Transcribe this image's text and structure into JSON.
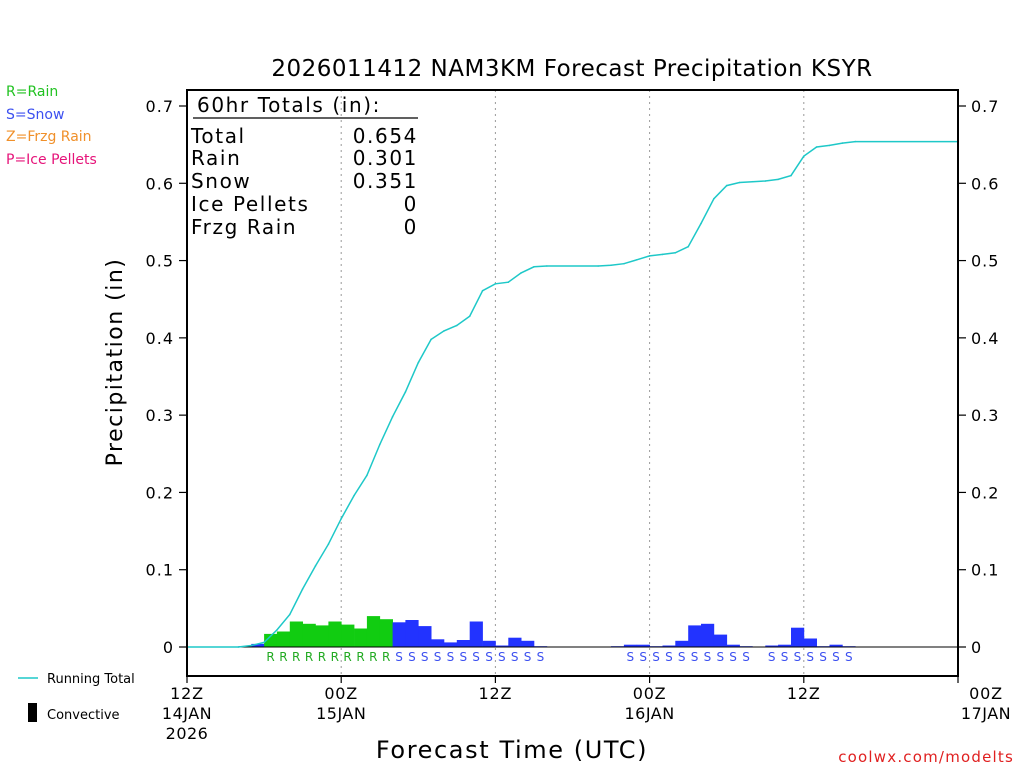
{
  "chart_data": {
    "type": "bar",
    "title": "2026011412 NAM3KM Forecast Precipitation KSYR",
    "xlabel": "Forecast Time (UTC)",
    "ylabel": "Precipitation (in)",
    "ylim": [
      0,
      0.7
    ],
    "xlim_hours": [
      0,
      60
    ],
    "yticks": [
      "0",
      "0.1",
      "0.2",
      "0.3",
      "0.4",
      "0.5",
      "0.6",
      "0.7"
    ],
    "xticks": [
      {
        "hour": 0,
        "top": "12Z",
        "mid": "14JAN",
        "bot": "2026"
      },
      {
        "hour": 12,
        "top": "00Z",
        "mid": "15JAN",
        "bot": ""
      },
      {
        "hour": 24,
        "top": "12Z",
        "mid": "",
        "bot": ""
      },
      {
        "hour": 36,
        "top": "00Z",
        "mid": "16JAN",
        "bot": ""
      },
      {
        "hour": 48,
        "top": "12Z",
        "mid": "",
        "bot": ""
      },
      {
        "hour": 60,
        "top": "00Z",
        "mid": "17JAN",
        "bot": ""
      }
    ],
    "legend_top": [
      {
        "label": "R=Rain",
        "color": "#22c222"
      },
      {
        "label": "S=Snow",
        "color": "#3c50f0"
      },
      {
        "label": "Z=Frzg Rain",
        "color": "#f0902a"
      },
      {
        "label": "P=Ice Pellets",
        "color": "#e6147a"
      }
    ],
    "legend_bottom": [
      {
        "label": "Running Total",
        "kind": "line",
        "color": "#1ec8c8"
      },
      {
        "label": "Convective",
        "kind": "bar",
        "color": "#000000"
      }
    ],
    "totals": {
      "header": "60hr Totals (in):",
      "rows": [
        {
          "label": "Total",
          "value": "0.654"
        },
        {
          "label": "Rain",
          "value": "0.301"
        },
        {
          "label": "Snow",
          "value": "0.351"
        },
        {
          "label": "Ice Pellets",
          "value": "0"
        },
        {
          "label": "Frzg Rain",
          "value": "0"
        }
      ]
    },
    "colors": {
      "rain": "#11cc11",
      "snow": "#2233ff",
      "running_total": "#1ec8c8",
      "marker_rain": "#22aa22",
      "marker_snow": "#3c50f0"
    },
    "hourly": [
      {
        "h": 1,
        "v": 0.0,
        "type": ""
      },
      {
        "h": 2,
        "v": 0.0,
        "type": ""
      },
      {
        "h": 3,
        "v": 0.0,
        "type": ""
      },
      {
        "h": 4,
        "v": 0.0,
        "type": ""
      },
      {
        "h": 5,
        "v": 0.001,
        "type": ""
      },
      {
        "h": 6,
        "v": 0.004,
        "type": ""
      },
      {
        "h": 7,
        "v": 0.017,
        "type": "R"
      },
      {
        "h": 8,
        "v": 0.02,
        "type": "R"
      },
      {
        "h": 9,
        "v": 0.033,
        "type": "R"
      },
      {
        "h": 10,
        "v": 0.03,
        "type": "R"
      },
      {
        "h": 11,
        "v": 0.028,
        "type": "R"
      },
      {
        "h": 12,
        "v": 0.033,
        "type": "R"
      },
      {
        "h": 13,
        "v": 0.029,
        "type": "R"
      },
      {
        "h": 14,
        "v": 0.024,
        "type": "R"
      },
      {
        "h": 15,
        "v": 0.04,
        "type": "R"
      },
      {
        "h": 16,
        "v": 0.036,
        "type": "R"
      },
      {
        "h": 17,
        "v": 0.032,
        "type": "S"
      },
      {
        "h": 18,
        "v": 0.035,
        "type": "S"
      },
      {
        "h": 19,
        "v": 0.027,
        "type": "S"
      },
      {
        "h": 20,
        "v": 0.01,
        "type": "S"
      },
      {
        "h": 21,
        "v": 0.006,
        "type": "S"
      },
      {
        "h": 22,
        "v": 0.009,
        "type": "S"
      },
      {
        "h": 23,
        "v": 0.033,
        "type": "S"
      },
      {
        "h": 24,
        "v": 0.008,
        "type": "S"
      },
      {
        "h": 25,
        "v": 0.002,
        "type": "S"
      },
      {
        "h": 26,
        "v": 0.012,
        "type": "S"
      },
      {
        "h": 27,
        "v": 0.008,
        "type": "S"
      },
      {
        "h": 28,
        "v": 0.001,
        "type": "S"
      },
      {
        "h": 29,
        "v": 0.0,
        "type": ""
      },
      {
        "h": 30,
        "v": 0.0,
        "type": ""
      },
      {
        "h": 31,
        "v": 0.0,
        "type": ""
      },
      {
        "h": 32,
        "v": 0.0,
        "type": ""
      },
      {
        "h": 33,
        "v": 0.0,
        "type": ""
      },
      {
        "h": 34,
        "v": 0.001,
        "type": ""
      },
      {
        "h": 35,
        "v": 0.003,
        "type": "S"
      },
      {
        "h": 36,
        "v": 0.003,
        "type": "S"
      },
      {
        "h": 37,
        "v": 0.001,
        "type": "S"
      },
      {
        "h": 38,
        "v": 0.002,
        "type": "S"
      },
      {
        "h": 39,
        "v": 0.008,
        "type": "S"
      },
      {
        "h": 40,
        "v": 0.028,
        "type": "S"
      },
      {
        "h": 41,
        "v": 0.03,
        "type": "S"
      },
      {
        "h": 42,
        "v": 0.016,
        "type": "S"
      },
      {
        "h": 43,
        "v": 0.003,
        "type": "S"
      },
      {
        "h": 44,
        "v": 0.001,
        "type": "S"
      },
      {
        "h": 45,
        "v": 0.0,
        "type": ""
      },
      {
        "h": 46,
        "v": 0.002,
        "type": "S"
      },
      {
        "h": 47,
        "v": 0.003,
        "type": "S"
      },
      {
        "h": 48,
        "v": 0.025,
        "type": "S"
      },
      {
        "h": 49,
        "v": 0.011,
        "type": "S"
      },
      {
        "h": 50,
        "v": 0.001,
        "type": "S"
      },
      {
        "h": 51,
        "v": 0.003,
        "type": "S"
      },
      {
        "h": 52,
        "v": 0.001,
        "type": "S"
      },
      {
        "h": 53,
        "v": 0.0,
        "type": ""
      },
      {
        "h": 54,
        "v": 0.0,
        "type": ""
      },
      {
        "h": 55,
        "v": 0.0,
        "type": ""
      },
      {
        "h": 56,
        "v": 0.0,
        "type": ""
      },
      {
        "h": 57,
        "v": 0.0,
        "type": ""
      },
      {
        "h": 58,
        "v": 0.0,
        "type": ""
      },
      {
        "h": 59,
        "v": 0.0,
        "type": ""
      },
      {
        "h": 60,
        "v": 0.0,
        "type": ""
      }
    ],
    "running_total": [
      {
        "h": 0,
        "v": 0.0
      },
      {
        "h": 4,
        "v": 0.0
      },
      {
        "h": 5,
        "v": 0.002
      },
      {
        "h": 6,
        "v": 0.006
      },
      {
        "h": 7,
        "v": 0.022
      },
      {
        "h": 8,
        "v": 0.042
      },
      {
        "h": 9,
        "v": 0.075
      },
      {
        "h": 10,
        "v": 0.105
      },
      {
        "h": 11,
        "v": 0.133
      },
      {
        "h": 12,
        "v": 0.166
      },
      {
        "h": 13,
        "v": 0.196
      },
      {
        "h": 14,
        "v": 0.222
      },
      {
        "h": 15,
        "v": 0.262
      },
      {
        "h": 16,
        "v": 0.298
      },
      {
        "h": 17,
        "v": 0.33
      },
      {
        "h": 18,
        "v": 0.368
      },
      {
        "h": 19,
        "v": 0.398
      },
      {
        "h": 20,
        "v": 0.409
      },
      {
        "h": 21,
        "v": 0.416
      },
      {
        "h": 22,
        "v": 0.428
      },
      {
        "h": 23,
        "v": 0.461
      },
      {
        "h": 24,
        "v": 0.47
      },
      {
        "h": 25,
        "v": 0.472
      },
      {
        "h": 26,
        "v": 0.484
      },
      {
        "h": 27,
        "v": 0.492
      },
      {
        "h": 28,
        "v": 0.493
      },
      {
        "h": 32,
        "v": 0.493
      },
      {
        "h": 33,
        "v": 0.494
      },
      {
        "h": 34,
        "v": 0.496
      },
      {
        "h": 35,
        "v": 0.501
      },
      {
        "h": 36,
        "v": 0.506
      },
      {
        "h": 37,
        "v": 0.508
      },
      {
        "h": 38,
        "v": 0.51
      },
      {
        "h": 39,
        "v": 0.518
      },
      {
        "h": 40,
        "v": 0.548
      },
      {
        "h": 41,
        "v": 0.58
      },
      {
        "h": 42,
        "v": 0.597
      },
      {
        "h": 43,
        "v": 0.601
      },
      {
        "h": 44,
        "v": 0.602
      },
      {
        "h": 45,
        "v": 0.603
      },
      {
        "h": 46,
        "v": 0.605
      },
      {
        "h": 47,
        "v": 0.61
      },
      {
        "h": 48,
        "v": 0.635
      },
      {
        "h": 49,
        "v": 0.647
      },
      {
        "h": 50,
        "v": 0.649
      },
      {
        "h": 51,
        "v": 0.652
      },
      {
        "h": 52,
        "v": 0.654
      },
      {
        "h": 60,
        "v": 0.654
      }
    ]
  },
  "footer": {
    "credit": "coolwx.com/modelts"
  }
}
